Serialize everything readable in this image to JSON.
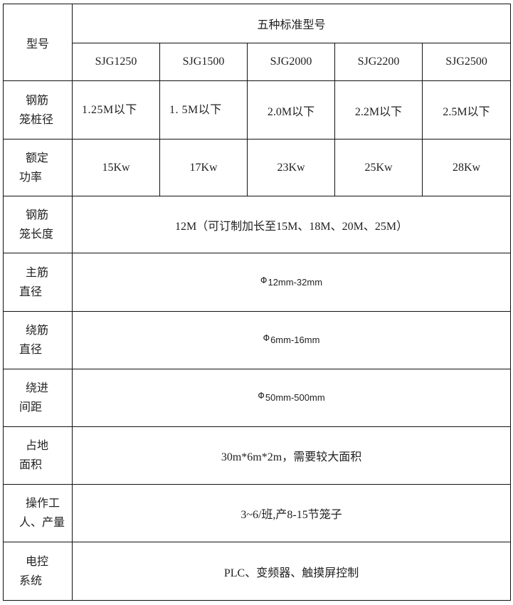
{
  "table": {
    "model_label": "型号",
    "group_title": "五种标准型号",
    "models": [
      "SJG1250",
      "SJG1500",
      "SJG2000",
      "SJG2200",
      "SJG2500"
    ],
    "cage_diameter": {
      "label1": "钢筋",
      "label2": "笼桩径",
      "values": [
        "1.25M以下",
        "1. 5M以下",
        "2.0M以下",
        "2.2M以下",
        "2.5M以下"
      ]
    },
    "power": {
      "label1": "额定",
      "label2": "功率",
      "values": [
        "15Kw",
        "17Kw",
        "23Kw",
        "25Kw",
        "28Kw"
      ]
    },
    "rows": [
      {
        "label1": "钢筋",
        "label2": "笼长度",
        "value": "12M（可订制加长至15M、18M、20M、25M）",
        "phi": false
      },
      {
        "label1": "主筋",
        "label2": "直径",
        "value": "12mm-32mm",
        "phi": true
      },
      {
        "label1": "绕筋",
        "label2": "直径",
        "value": "6mm-16mm",
        "phi": true
      },
      {
        "label1": "绕进",
        "label2": "间距",
        "value": "50mm-500mm",
        "phi": true
      },
      {
        "label1": "占地",
        "label2": "面积",
        "value": "30m*6m*2m，需要较大面积",
        "phi": false
      },
      {
        "label1": "操作工",
        "label2": "人、产量",
        "value": "3~6/班,产8-15节笼子",
        "phi": false
      },
      {
        "label1": "电控",
        "label2": "系统",
        "value": "PLC、变频器、触摸屏控制",
        "phi": false
      }
    ],
    "phi_symbol": "Φ"
  }
}
